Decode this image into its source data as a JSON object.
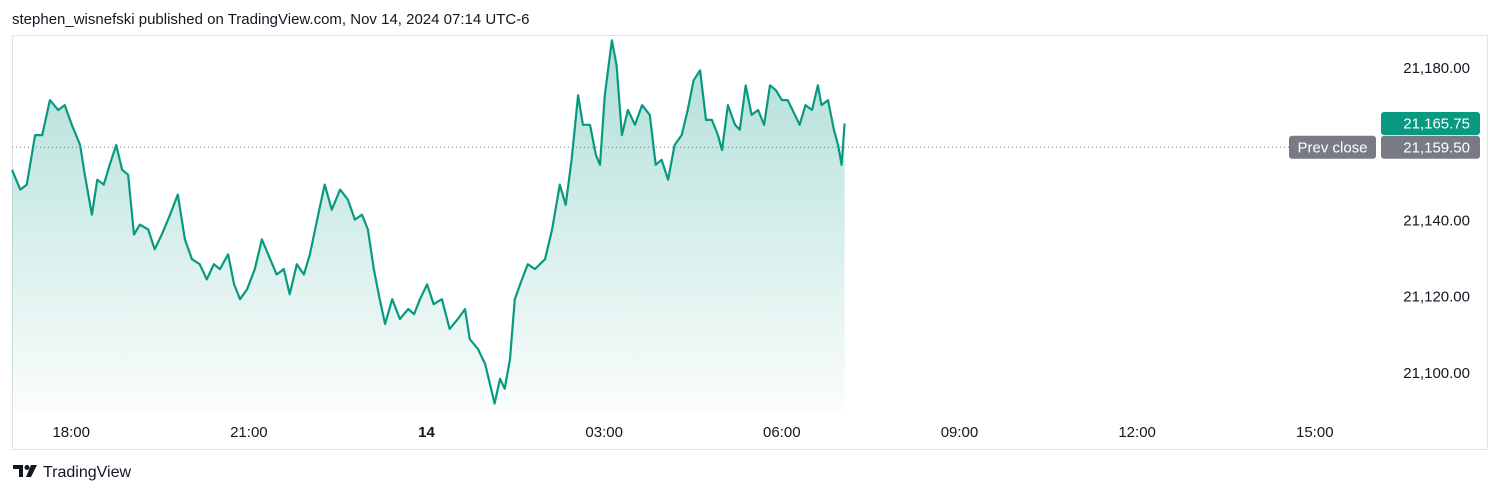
{
  "header": "stephen_wisnefski published on TradingView.com, Nov 14, 2024 07:14 UTC-6",
  "footer": "TradingView",
  "chart_data": {
    "type": "area",
    "color": "#089981",
    "grid": false,
    "xlim": [
      17,
      40
    ],
    "ylim": [
      21090.5,
      21189
    ],
    "xticks": [
      {
        "value": 18,
        "label": "18:00"
      },
      {
        "value": 21,
        "label": "21:00"
      },
      {
        "value": 24,
        "label": "14",
        "bold": true
      },
      {
        "value": 27,
        "label": "03:00"
      },
      {
        "value": 30,
        "label": "06:00"
      },
      {
        "value": 33,
        "label": "09:00"
      },
      {
        "value": 36,
        "label": "12:00"
      },
      {
        "value": 39,
        "label": "15:00"
      }
    ],
    "yticks": [
      {
        "value": 21100,
        "label": "21,100.00"
      },
      {
        "value": 21120,
        "label": "21,120.00"
      },
      {
        "value": 21140,
        "label": "21,140.00"
      },
      {
        "value": 21180,
        "label": "21,180.00"
      }
    ],
    "x": [
      17.0,
      17.14,
      17.25,
      17.39,
      17.51,
      17.64,
      17.78,
      17.89,
      18.01,
      18.15,
      18.23,
      18.35,
      18.44,
      18.55,
      18.65,
      18.76,
      18.86,
      18.96,
      19.06,
      19.16,
      19.3,
      19.41,
      19.53,
      19.67,
      19.8,
      19.92,
      20.04,
      20.17,
      20.29,
      20.41,
      20.51,
      20.65,
      20.75,
      20.85,
      20.97,
      21.1,
      21.22,
      21.36,
      21.47,
      21.59,
      21.69,
      21.81,
      21.93,
      22.03,
      22.17,
      22.28,
      22.4,
      22.54,
      22.67,
      22.79,
      22.91,
      23.01,
      23.11,
      23.21,
      23.3,
      23.42,
      23.55,
      23.69,
      23.79,
      23.89,
      24.01,
      24.12,
      24.26,
      24.39,
      24.53,
      24.65,
      24.73,
      24.87,
      24.99,
      25.07,
      25.15,
      25.24,
      25.32,
      25.41,
      25.49,
      25.58,
      25.71,
      25.83,
      26.0,
      26.12,
      26.25,
      26.35,
      26.45,
      26.56,
      26.64,
      26.76,
      26.86,
      26.93,
      27.01,
      27.13,
      27.21,
      27.3,
      27.4,
      27.52,
      27.64,
      27.77,
      27.87,
      27.97,
      28.08,
      28.19,
      28.31,
      28.41,
      28.51,
      28.62,
      28.72,
      28.82,
      28.92,
      28.99,
      29.09,
      29.21,
      29.29,
      29.39,
      29.49,
      29.6,
      29.7,
      29.8,
      29.9,
      30.0,
      30.1,
      30.22,
      30.3,
      30.4,
      30.51,
      30.61,
      30.67,
      30.78,
      30.88,
      30.95,
      31.01,
      31.06
    ],
    "values": [
      21153.6,
      21148.4,
      21149.7,
      21162.7,
      21162.7,
      21171.9,
      21169.3,
      21170.6,
      21165.4,
      21160.1,
      21152.3,
      21141.8,
      21151.0,
      21149.7,
      21154.9,
      21160.1,
      21153.6,
      21152.3,
      21136.6,
      21139.2,
      21137.9,
      21132.7,
      21136.6,
      21141.8,
      21147.1,
      21135.3,
      21130.1,
      21128.8,
      21124.8,
      21128.8,
      21127.5,
      21131.4,
      21123.5,
      21119.6,
      21122.2,
      21127.5,
      21135.3,
      21130.1,
      21126.1,
      21127.5,
      21120.9,
      21128.8,
      21126.1,
      21131.4,
      21141.8,
      21149.7,
      21143.1,
      21148.4,
      21145.8,
      21140.5,
      21141.8,
      21137.9,
      21127.5,
      21119.6,
      21113.1,
      21119.6,
      21114.4,
      21117.0,
      21115.7,
      21119.6,
      21123.5,
      21118.3,
      21119.6,
      21111.8,
      21114.4,
      21117.0,
      21109.1,
      21106.5,
      21102.6,
      21097.4,
      21092.2,
      21098.7,
      21096.1,
      21103.9,
      21119.6,
      21123.5,
      21128.8,
      21127.5,
      21130.1,
      21137.9,
      21149.7,
      21144.4,
      21156.2,
      21173.2,
      21165.4,
      21165.4,
      21157.5,
      21154.9,
      21173.2,
      21187.6,
      21181.0,
      21162.7,
      21169.3,
      21165.4,
      21170.6,
      21168.0,
      21154.9,
      21156.2,
      21151.0,
      21160.1,
      21162.7,
      21169.3,
      21177.1,
      21179.7,
      21166.7,
      21166.7,
      21162.7,
      21158.8,
      21170.6,
      21165.4,
      21164.1,
      21175.8,
      21168.0,
      21169.3,
      21165.4,
      21175.8,
      21174.5,
      21171.9,
      21171.9,
      21168.0,
      21165.4,
      21170.6,
      21169.3,
      21175.8,
      21170.6,
      21171.9,
      21164.1,
      21160.1,
      21154.9,
      21165.75
    ],
    "last_label": "21,165.75",
    "prev_close": {
      "name": "Prev close",
      "value": 21159.5,
      "label": "21,159.50",
      "color": "#787b86"
    }
  }
}
